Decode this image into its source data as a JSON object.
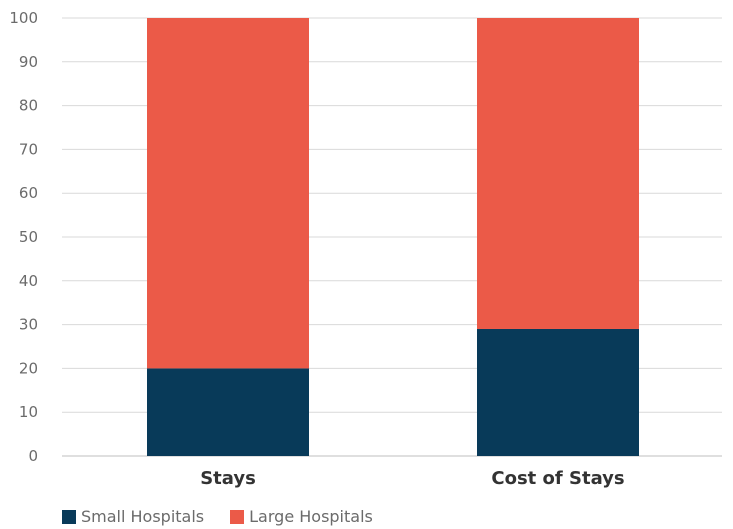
{
  "chart_data": {
    "type": "bar",
    "stacked": true,
    "categories": [
      "Stays",
      "Cost of Stays"
    ],
    "series": [
      {
        "name": "Small Hospitals",
        "color": "#083A59",
        "values": [
          20,
          29
        ]
      },
      {
        "name": "Large Hospitals",
        "color": "#EB5A48",
        "values": [
          80,
          71
        ]
      }
    ],
    "ylim": [
      0,
      100
    ],
    "yticks": [
      0,
      10,
      20,
      30,
      40,
      50,
      60,
      70,
      80,
      90,
      100
    ],
    "grid": true,
    "legend_position": "bottom-left",
    "title": "",
    "xlabel": "",
    "ylabel": ""
  }
}
